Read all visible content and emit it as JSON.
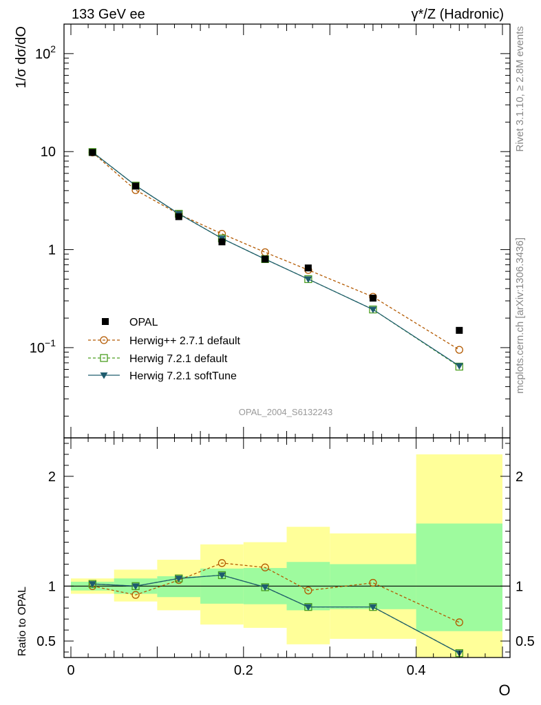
{
  "header": {
    "left": "133 GeV ee",
    "right": "γ*/Z (Hadronic)"
  },
  "side_labels": {
    "rivet": "Rivet 3.1.10, ≥ 2.8M events",
    "mcplots": "mcplots.cern.ch [arXiv:1306.3436]"
  },
  "colors": {
    "data": "#000000",
    "herwigpp": "#b35900",
    "herwig721": "#4a9e1f",
    "softtune": "#1e5c6e",
    "band_inner": "#9efb9e",
    "band_outer": "#ffff99"
  },
  "chart_data": [
    {
      "type": "line",
      "panel": "main",
      "ylabel": "1/σ dσ/dO",
      "xlabel": "",
      "yscale": "log",
      "ylim": [
        0.012,
        200
      ],
      "xlim": [
        0,
        0.5
      ],
      "y_tick_labels": [
        "10^-1",
        "1",
        "10",
        "10^2"
      ],
      "watermark": "OPAL_2004_S6132243",
      "legend_position": "lower-left",
      "x_bin_edges": [
        0.0,
        0.05,
        0.1,
        0.15,
        0.2,
        0.25,
        0.3,
        0.4,
        0.5
      ],
      "x": [
        0.025,
        0.075,
        0.125,
        0.175,
        0.225,
        0.275,
        0.35,
        0.45
      ],
      "series": [
        {
          "name": "OPAL",
          "style": "data",
          "values": [
            9.8,
            4.45,
            2.17,
            1.2,
            0.8,
            0.65,
            0.32,
            0.15
          ]
        },
        {
          "name": "Herwig++ 2.7.1 default",
          "style": "herwigpp",
          "values": [
            9.8,
            4.05,
            2.3,
            1.45,
            0.94,
            0.62,
            0.33,
            0.095
          ]
        },
        {
          "name": "Herwig 7.2.1 default",
          "style": "herwig721",
          "values": [
            9.9,
            4.5,
            2.32,
            1.3,
            0.8,
            0.5,
            0.245,
            0.064
          ]
        },
        {
          "name": "Herwig 7.2.1 softTune",
          "style": "softtune",
          "values": [
            9.9,
            4.5,
            2.32,
            1.3,
            0.8,
            0.5,
            0.245,
            0.065
          ]
        }
      ]
    },
    {
      "type": "line",
      "panel": "ratio",
      "ylabel": "Ratio to OPAL",
      "xlabel": "O",
      "ylim": [
        0.35,
        2.35
      ],
      "xlim": [
        0,
        0.5
      ],
      "y_ticks": [
        0.5,
        1,
        2
      ],
      "x_ticks": [
        0,
        0.2,
        0.4
      ],
      "x_bin_edges": [
        0.0,
        0.05,
        0.1,
        0.15,
        0.2,
        0.25,
        0.3,
        0.4,
        0.5
      ],
      "x": [
        0.025,
        0.075,
        0.125,
        0.175,
        0.225,
        0.275,
        0.35,
        0.45
      ],
      "band_inner": [
        [
          0.96,
          1.04
        ],
        [
          0.93,
          1.07
        ],
        [
          0.9,
          1.09
        ],
        [
          0.84,
          1.16
        ],
        [
          0.835,
          1.165
        ],
        [
          0.78,
          1.22
        ],
        [
          0.79,
          1.2
        ],
        [
          0.59,
          1.57
        ]
      ],
      "band_outer": [
        [
          0.93,
          1.07
        ],
        [
          0.86,
          1.15
        ],
        [
          0.78,
          1.24
        ],
        [
          0.65,
          1.38
        ],
        [
          0.62,
          1.4
        ],
        [
          0.47,
          1.54
        ],
        [
          0.52,
          1.48
        ],
        [
          0.32,
          2.2
        ]
      ],
      "series": [
        {
          "name": "Herwig++ 2.7.1 default",
          "style": "herwigpp",
          "values": [
            1.0,
            0.92,
            1.055,
            1.21,
            1.17,
            0.96,
            1.03,
            0.67
          ]
        },
        {
          "name": "Herwig 7.2.1 default",
          "style": "herwig721",
          "values": [
            1.02,
            1.0,
            1.07,
            1.1,
            0.99,
            0.81,
            0.81,
            0.39
          ]
        },
        {
          "name": "Herwig 7.2.1 softTune",
          "style": "softtune",
          "values": [
            1.02,
            1.0,
            1.07,
            1.1,
            0.99,
            0.81,
            0.81,
            0.39
          ]
        }
      ]
    }
  ]
}
